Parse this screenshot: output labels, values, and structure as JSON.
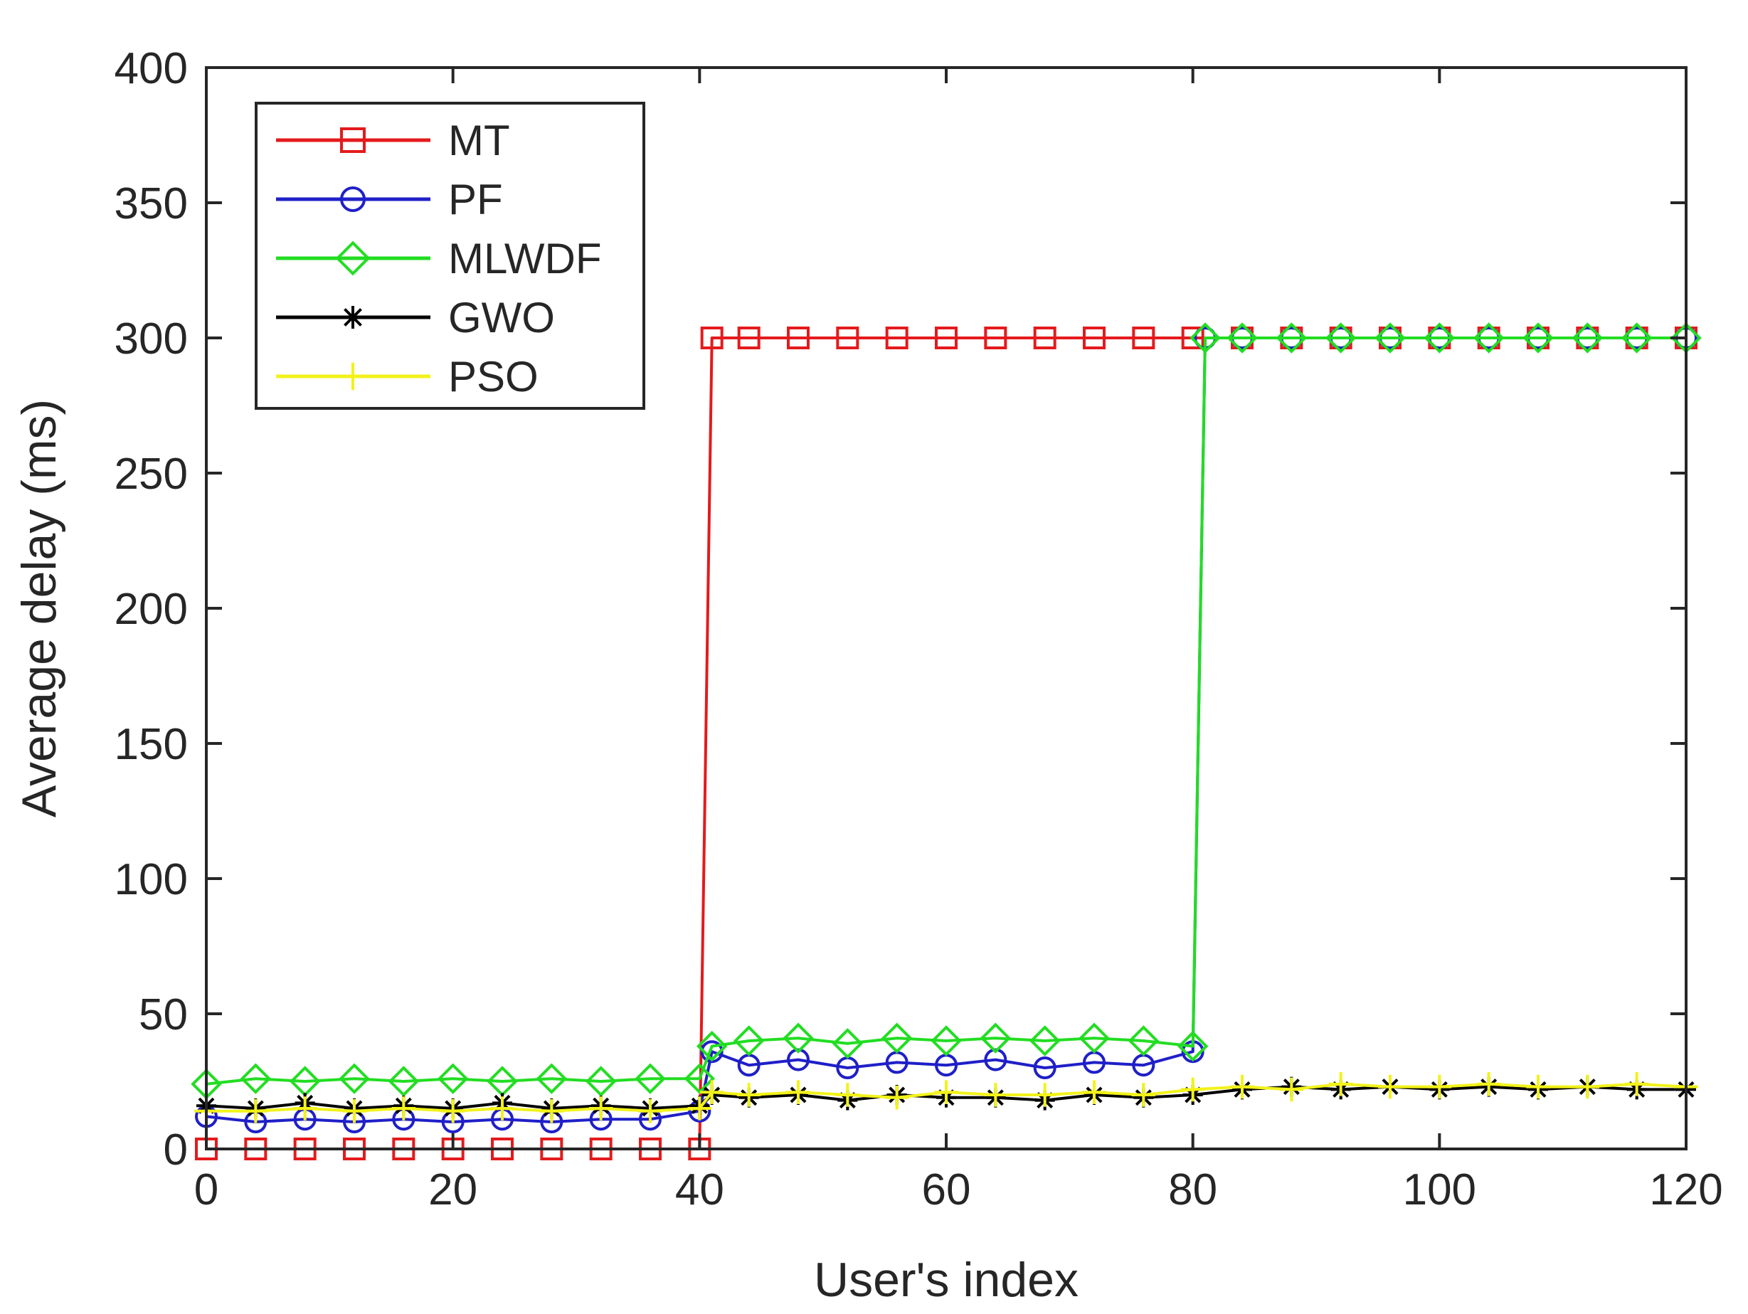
{
  "chart_data": {
    "type": "line",
    "title": "",
    "xlabel": "User's index",
    "ylabel": "Average delay (ms)",
    "xlim": [
      0,
      120
    ],
    "ylim": [
      0,
      400
    ],
    "xticks": [
      0,
      20,
      40,
      60,
      80,
      100,
      120
    ],
    "yticks": [
      0,
      50,
      100,
      150,
      200,
      250,
      300,
      350,
      400
    ],
    "grid": false,
    "legend_position": "top-left",
    "series": [
      {
        "name": "MT",
        "color": "#e41a1c",
        "marker": "square",
        "x": [
          0,
          4,
          8,
          12,
          16,
          20,
          24,
          28,
          32,
          36,
          40,
          41,
          44,
          48,
          52,
          56,
          60,
          64,
          68,
          72,
          76,
          80,
          84,
          88,
          92,
          96,
          100,
          104,
          108,
          112,
          116,
          120
        ],
        "y": [
          0,
          0,
          0,
          0,
          0,
          0,
          0,
          0,
          0,
          0,
          0,
          300,
          300,
          300,
          300,
          300,
          300,
          300,
          300,
          300,
          300,
          300,
          300,
          300,
          300,
          300,
          300,
          300,
          300,
          300,
          300,
          300
        ]
      },
      {
        "name": "PF",
        "color": "#1f1fc8",
        "marker": "circle",
        "x": [
          0,
          4,
          8,
          12,
          16,
          20,
          24,
          28,
          32,
          36,
          40,
          41,
          44,
          48,
          52,
          56,
          60,
          64,
          68,
          72,
          76,
          80,
          81,
          84,
          88,
          92,
          96,
          100,
          104,
          108,
          112,
          116,
          120
        ],
        "y": [
          12,
          10,
          11,
          10,
          11,
          10,
          11,
          10,
          11,
          11,
          14,
          36,
          31,
          33,
          30,
          32,
          31,
          33,
          30,
          32,
          31,
          36,
          300,
          300,
          300,
          300,
          300,
          300,
          300,
          300,
          300,
          300,
          300
        ]
      },
      {
        "name": "MLWDF",
        "color": "#22dd22",
        "marker": "diamond",
        "x": [
          0,
          4,
          8,
          12,
          16,
          20,
          24,
          28,
          32,
          36,
          40,
          41,
          44,
          48,
          52,
          56,
          60,
          64,
          68,
          72,
          76,
          80,
          81,
          84,
          88,
          92,
          96,
          100,
          104,
          108,
          112,
          116,
          120
        ],
        "y": [
          24,
          26,
          25,
          26,
          25,
          26,
          25,
          26,
          25,
          26,
          26,
          38,
          40,
          41,
          39,
          41,
          40,
          41,
          40,
          41,
          40,
          38,
          300,
          300,
          300,
          300,
          300,
          300,
          300,
          300,
          300,
          300,
          300
        ]
      },
      {
        "name": "GWO",
        "color": "#000000",
        "marker": "asterisk",
        "x": [
          0,
          4,
          8,
          12,
          16,
          20,
          24,
          28,
          32,
          36,
          40,
          41,
          44,
          48,
          52,
          56,
          60,
          64,
          68,
          72,
          76,
          80,
          84,
          88,
          92,
          96,
          100,
          104,
          108,
          112,
          116,
          120
        ],
        "y": [
          16,
          15,
          17,
          15,
          16,
          15,
          17,
          15,
          16,
          15,
          16,
          20,
          19,
          20,
          18,
          20,
          19,
          19,
          18,
          20,
          19,
          20,
          22,
          23,
          22,
          23,
          22,
          23,
          22,
          23,
          22,
          22
        ]
      },
      {
        "name": "PSO",
        "color": "#f2f21a",
        "marker": "plus",
        "x": [
          0,
          4,
          8,
          12,
          16,
          20,
          24,
          28,
          32,
          36,
          40,
          41,
          44,
          48,
          52,
          56,
          60,
          64,
          68,
          72,
          76,
          80,
          84,
          88,
          92,
          96,
          100,
          104,
          108,
          112,
          116,
          120
        ],
        "y": [
          14,
          14,
          15,
          14,
          15,
          14,
          15,
          14,
          15,
          14,
          15,
          21,
          20,
          21,
          20,
          19,
          21,
          20,
          20,
          21,
          20,
          22,
          23,
          22,
          24,
          23,
          23,
          24,
          23,
          23,
          24,
          23
        ]
      }
    ]
  }
}
